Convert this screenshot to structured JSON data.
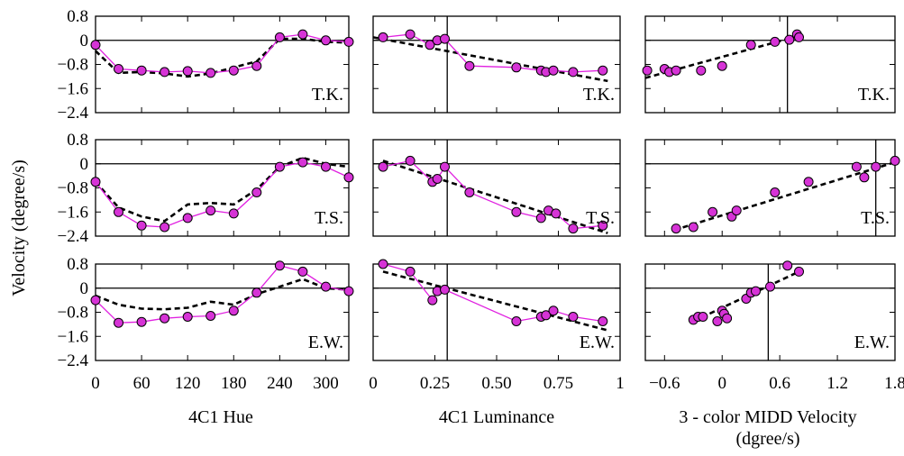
{
  "figure": {
    "ylabel": "Velocity (degree/s)",
    "xlabels": [
      "4C1 Hue",
      "4C1 Luminance",
      "3 - color MIDD Velocity",
      "(dgree/s)"
    ]
  },
  "style": {
    "data_color": "#e020e0",
    "point_color": "#d633d6",
    "fit_color": "#000000"
  },
  "chart_data": [
    {
      "type": "line",
      "row": 0,
      "col": 0,
      "subject": "T.K.",
      "xlim": [
        0,
        330
      ],
      "ylim": [
        -2.4,
        0.8
      ],
      "xticks": [
        0,
        60,
        120,
        180,
        240,
        300
      ],
      "xtick_labels": [
        "0",
        "60",
        "120",
        "180",
        "240",
        "300"
      ],
      "yticks": [
        0.8,
        0,
        -0.8,
        -1.6,
        -2.4
      ],
      "ytick_labels": [
        "0.8",
        "0",
        "−0.8",
        "−1.6",
        "−2.4"
      ],
      "x": [
        0,
        30,
        60,
        90,
        120,
        150,
        180,
        210,
        240,
        270,
        300,
        330
      ],
      "y": [
        -0.15,
        -0.95,
        -1.0,
        -1.05,
        -1.02,
        -1.08,
        -1.0,
        -0.85,
        0.1,
        0.2,
        0.0,
        -0.05
      ],
      "fit": [
        [
          0,
          -0.35
        ],
        [
          30,
          -1.08
        ],
        [
          60,
          -1.05
        ],
        [
          90,
          -1.1
        ],
        [
          120,
          -1.2
        ],
        [
          150,
          -1.1
        ],
        [
          180,
          -0.9
        ],
        [
          210,
          -0.7
        ],
        [
          240,
          0.05
        ],
        [
          270,
          0.05
        ],
        [
          300,
          -0.05
        ],
        [
          330,
          -0.08
        ]
      ]
    },
    {
      "type": "line",
      "row": 0,
      "col": 1,
      "subject": "T.K.",
      "xlim": [
        0,
        1
      ],
      "ylim": [
        -2.4,
        0.8
      ],
      "vline": 0.3,
      "xticks": [
        0,
        0.25,
        0.5,
        0.75,
        1.0
      ],
      "xtick_labels": [
        "0",
        "0.25",
        "0.50",
        "0.75",
        "1"
      ],
      "x": [
        0.04,
        0.15,
        0.23,
        0.26,
        0.29,
        0.39,
        0.58,
        0.68,
        0.7,
        0.73,
        0.81,
        0.93
      ],
      "y": [
        0.1,
        0.2,
        -0.15,
        0.0,
        0.05,
        -0.85,
        -0.9,
        -1.0,
        -1.05,
        -1.0,
        -1.05,
        -1.0
      ],
      "fit": [
        [
          0.0,
          0.1
        ],
        [
          0.95,
          -1.35
        ]
      ]
    },
    {
      "type": "scatter",
      "row": 0,
      "col": 2,
      "subject": "T.K.",
      "xlim": [
        -0.8,
        1.8
      ],
      "ylim": [
        -2.4,
        0.8
      ],
      "vline": 0.68,
      "xticks": [
        -0.6,
        0,
        0.6,
        1.2,
        1.8
      ],
      "xtick_labels": [
        "−0.6",
        "0",
        "0.6",
        "1.2",
        "1.8"
      ],
      "x": [
        -0.78,
        -0.6,
        -0.55,
        -0.48,
        -0.22,
        0.0,
        0.3,
        0.55,
        0.7,
        0.78,
        0.8
      ],
      "y": [
        -1.0,
        -0.95,
        -1.05,
        -1.0,
        -1.0,
        -0.85,
        -0.15,
        -0.05,
        0.02,
        0.2,
        0.1
      ],
      "fit": [
        [
          -0.8,
          -1.25
        ],
        [
          0.8,
          0.15
        ]
      ]
    },
    {
      "type": "line",
      "row": 1,
      "col": 0,
      "subject": "T.S.",
      "xlim": [
        0,
        330
      ],
      "ylim": [
        -2.4,
        0.8
      ],
      "xticks": [
        0,
        60,
        120,
        180,
        240,
        300
      ],
      "xtick_labels": [
        "0",
        "60",
        "120",
        "180",
        "240",
        "300"
      ],
      "yticks": [
        0.8,
        0,
        -0.8,
        -1.6,
        -2.4
      ],
      "ytick_labels": [
        "0.8",
        "0",
        "−0.8",
        "−1.6",
        "−2.4"
      ],
      "x": [
        0,
        30,
        60,
        90,
        120,
        150,
        180,
        210,
        240,
        270,
        300,
        330
      ],
      "y": [
        -0.6,
        -1.6,
        -2.05,
        -2.1,
        -1.8,
        -1.55,
        -1.65,
        -0.95,
        -0.1,
        0.05,
        -0.1,
        -0.45
      ],
      "fit": [
        [
          0,
          -0.6
        ],
        [
          30,
          -1.45
        ],
        [
          60,
          -1.75
        ],
        [
          90,
          -1.9
        ],
        [
          120,
          -1.35
        ],
        [
          150,
          -1.3
        ],
        [
          180,
          -1.35
        ],
        [
          210,
          -0.85
        ],
        [
          240,
          -0.1
        ],
        [
          270,
          0.2
        ],
        [
          300,
          0.0
        ],
        [
          330,
          -0.1
        ]
      ]
    },
    {
      "type": "line",
      "row": 1,
      "col": 1,
      "subject": "T.S.",
      "xlim": [
        0,
        1
      ],
      "ylim": [
        -2.4,
        0.8
      ],
      "vline": 0.3,
      "xticks": [
        0,
        0.25,
        0.5,
        0.75,
        1.0
      ],
      "xtick_labels": [
        "0",
        "0.25",
        "0.50",
        "0.75",
        "1"
      ],
      "x": [
        0.04,
        0.15,
        0.24,
        0.26,
        0.29,
        0.39,
        0.58,
        0.68,
        0.71,
        0.74,
        0.81,
        0.93
      ],
      "y": [
        -0.1,
        0.1,
        -0.6,
        -0.5,
        -0.1,
        -0.95,
        -1.6,
        -1.8,
        -1.55,
        -1.65,
        -2.15,
        -2.05
      ],
      "fit": [
        [
          0.04,
          0.1
        ],
        [
          0.95,
          -2.3
        ]
      ]
    },
    {
      "type": "scatter",
      "row": 1,
      "col": 2,
      "subject": "T.S.",
      "xlim": [
        -0.8,
        1.8
      ],
      "ylim": [
        -2.4,
        0.8
      ],
      "vline": 1.6,
      "xticks": [
        -0.6,
        0,
        0.6,
        1.2,
        1.8
      ],
      "xtick_labels": [
        "−0.6",
        "0",
        "0.6",
        "1.2",
        "1.8"
      ],
      "x": [
        -0.48,
        -0.3,
        -0.1,
        0.1,
        0.15,
        0.55,
        0.9,
        1.4,
        1.48,
        1.6,
        1.8
      ],
      "y": [
        -2.15,
        -2.1,
        -1.6,
        -1.75,
        -1.55,
        -0.95,
        -0.6,
        -0.1,
        -0.45,
        -0.1,
        0.1
      ],
      "fit": [
        [
          -0.5,
          -2.2
        ],
        [
          1.8,
          0.05
        ]
      ]
    },
    {
      "type": "line",
      "row": 2,
      "col": 0,
      "subject": "E.W.",
      "xlim": [
        0,
        330
      ],
      "ylim": [
        -2.4,
        0.8
      ],
      "xticks": [
        0,
        60,
        120,
        180,
        240,
        300
      ],
      "xtick_labels": [
        "0",
        "60",
        "120",
        "180",
        "240",
        "300"
      ],
      "yticks": [
        0.8,
        0,
        -0.8,
        -1.6,
        -2.4
      ],
      "ytick_labels": [
        "0.8",
        "0",
        "−0.8",
        "−1.6",
        "−2.4"
      ],
      "x": [
        0,
        30,
        60,
        90,
        120,
        150,
        180,
        210,
        240,
        270,
        300,
        330
      ],
      "y": [
        -0.4,
        -1.15,
        -1.12,
        -1.0,
        -0.95,
        -0.92,
        -0.75,
        -0.15,
        0.75,
        0.55,
        0.05,
        -0.1
      ],
      "fit": [
        [
          0,
          -0.25
        ],
        [
          30,
          -0.55
        ],
        [
          60,
          -0.68
        ],
        [
          90,
          -0.7
        ],
        [
          120,
          -0.65
        ],
        [
          150,
          -0.45
        ],
        [
          180,
          -0.55
        ],
        [
          210,
          -0.2
        ],
        [
          240,
          0.05
        ],
        [
          270,
          0.3
        ],
        [
          300,
          0.0
        ],
        [
          330,
          -0.05
        ]
      ]
    },
    {
      "type": "line",
      "row": 2,
      "col": 1,
      "subject": "E.W.",
      "xlim": [
        0,
        1
      ],
      "ylim": [
        -2.4,
        0.8
      ],
      "vline": 0.3,
      "xticks": [
        0,
        0.25,
        0.5,
        0.75,
        1.0
      ],
      "xtick_labels": [
        "0",
        "0.25",
        "0.50",
        "0.75",
        "1"
      ],
      "x": [
        0.04,
        0.15,
        0.24,
        0.26,
        0.29,
        0.58,
        0.68,
        0.7,
        0.73,
        0.81,
        0.93
      ],
      "y": [
        0.8,
        0.55,
        -0.4,
        -0.1,
        -0.05,
        -1.1,
        -0.95,
        -0.9,
        -0.75,
        -0.95,
        -1.1
      ],
      "fit": [
        [
          0.04,
          0.55
        ],
        [
          0.95,
          -1.4
        ]
      ]
    },
    {
      "type": "scatter",
      "row": 2,
      "col": 2,
      "subject": "E.W.",
      "xlim": [
        -0.8,
        1.8
      ],
      "ylim": [
        -2.4,
        0.8
      ],
      "vline": 0.48,
      "xticks": [
        -0.6,
        0,
        0.6,
        1.2,
        1.8
      ],
      "xtick_labels": [
        "−0.6",
        "0",
        "0.6",
        "1.2",
        "1.8"
      ],
      "x": [
        -0.3,
        -0.25,
        -0.2,
        -0.05,
        0.0,
        0.02,
        0.05,
        0.25,
        0.3,
        0.35,
        0.5,
        0.68,
        0.8
      ],
      "y": [
        -1.05,
        -0.95,
        -0.95,
        -1.1,
        -0.75,
        -0.85,
        -1.0,
        -0.35,
        -0.15,
        -0.1,
        0.05,
        0.75,
        0.55
      ],
      "fit": [
        [
          -0.3,
          -1.1
        ],
        [
          0.8,
          0.55
        ]
      ]
    }
  ]
}
